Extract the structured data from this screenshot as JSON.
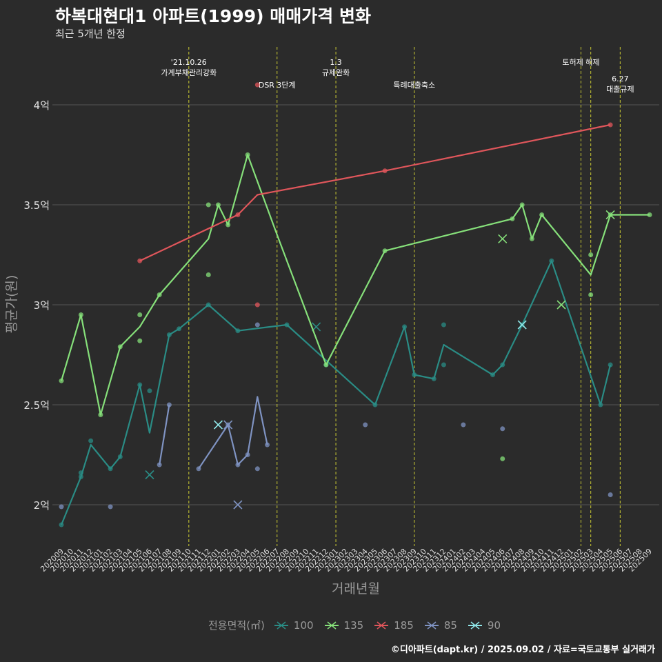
{
  "title": "하복대현대1 아파트(1999) 매매가격 변화",
  "subtitle": "최근 5개년 한정",
  "caption": "©디아파트(dapt.kr) / 2025.09.02 / 자료=국토교통부 실거래가",
  "colors": {
    "background": "#2b2b2b",
    "grid": "#555555",
    "event_line": "#cccc33",
    "s100": "#2a8c85",
    "s135": "#86e07a",
    "s185": "#e0565b",
    "s85": "#7f93c2",
    "s90": "#8fe6e8"
  },
  "chart_data": {
    "type": "line",
    "xlabel": "거래년월",
    "ylabel": "평균가(원)",
    "categories": [
      "202009",
      "202010",
      "202011",
      "202012",
      "202101",
      "202102",
      "202103",
      "202104",
      "202105",
      "202106",
      "202107",
      "202108",
      "202109",
      "202110",
      "202111",
      "202112",
      "202201",
      "202202",
      "202203",
      "202204",
      "202205",
      "202206",
      "202207",
      "202208",
      "202209",
      "202210",
      "202211",
      "202212",
      "202301",
      "202302",
      "202303",
      "202304",
      "202305",
      "202306",
      "202307",
      "202308",
      "202309",
      "202310",
      "202311",
      "202312",
      "202401",
      "202402",
      "202403",
      "202404",
      "202405",
      "202406",
      "202407",
      "202408",
      "202409",
      "202410",
      "202411",
      "202412",
      "202501",
      "202502",
      "202503",
      "202504",
      "202505",
      "202506",
      "202507",
      "202508",
      "202509"
    ],
    "y_ticks": [
      {
        "value": 2.0,
        "label": "2억"
      },
      {
        "value": 2.5,
        "label": "2.5억"
      },
      {
        "value": 3.0,
        "label": "3억"
      },
      {
        "value": 3.5,
        "label": "3.5억"
      },
      {
        "value": 4.0,
        "label": "4억"
      }
    ],
    "ylim": [
      1.8,
      4.25
    ],
    "legend_title": "전용면적(㎡)",
    "legend_position": "bottom",
    "events": [
      {
        "x": "202110",
        "lines": [
          "'21.10.26",
          "가계부채관리강화"
        ],
        "row": 1
      },
      {
        "x": "202207",
        "lines": [
          "DSR 3단계"
        ],
        "row": 2
      },
      {
        "x": "202301",
        "lines": [
          "1.3",
          "규제완화"
        ],
        "row": 1
      },
      {
        "x": "202309",
        "lines": [
          "특례대출축소"
        ],
        "row": 2
      },
      {
        "x": "202502",
        "lines": [
          "토허제 해제"
        ],
        "row": 1
      },
      {
        "x": "202503",
        "lines": [],
        "row": 0
      },
      {
        "x": "202506",
        "lines": [
          "6.27",
          "대출규제"
        ],
        "row": 3
      }
    ],
    "series": [
      {
        "name": "100",
        "color_key": "s100",
        "line": [
          [
            "202009",
            1.9
          ],
          [
            "202011",
            2.14
          ],
          [
            "202012",
            2.3
          ],
          [
            "202102",
            2.18
          ],
          [
            "202103",
            2.24
          ],
          [
            "202105",
            2.6
          ],
          [
            "202106",
            2.36
          ],
          [
            "202108",
            2.85
          ],
          [
            "202109",
            2.88
          ],
          [
            "202112",
            3.0
          ],
          [
            "202203",
            2.87
          ],
          [
            "202208",
            2.9
          ],
          [
            "202305",
            2.5
          ],
          [
            "202308",
            2.89
          ],
          [
            "202309",
            2.65
          ],
          [
            "202311",
            2.63
          ],
          [
            "202312",
            2.8
          ],
          [
            "202405",
            2.65
          ],
          [
            "202406",
            2.7
          ],
          [
            "202408",
            2.9
          ],
          [
            "202411",
            3.22
          ],
          [
            "202504",
            2.5
          ],
          [
            "202505",
            2.7
          ]
        ],
        "points": [
          [
            "202009",
            1.9
          ],
          [
            "202011",
            2.14
          ],
          [
            "202011",
            2.16
          ],
          [
            "202012",
            2.32
          ],
          [
            "202102",
            2.18
          ],
          [
            "202103",
            2.24
          ],
          [
            "202105",
            2.6
          ],
          [
            "202106",
            2.57
          ],
          [
            "202108",
            2.85
          ],
          [
            "202109",
            2.88
          ],
          [
            "202112",
            3.0
          ],
          [
            "202203",
            2.87
          ],
          [
            "202208",
            2.9
          ],
          [
            "202212",
            2.7
          ],
          [
            "202305",
            2.5
          ],
          [
            "202308",
            2.89
          ],
          [
            "202309",
            2.65
          ],
          [
            "202311",
            2.63
          ],
          [
            "202312",
            2.9
          ],
          [
            "202312",
            2.7
          ],
          [
            "202405",
            2.65
          ],
          [
            "202406",
            2.7
          ],
          [
            "202408",
            2.9
          ],
          [
            "202411",
            3.22
          ],
          [
            "202504",
            2.5
          ],
          [
            "202505",
            2.7
          ]
        ],
        "crosses": [
          [
            "202106",
            2.15
          ],
          [
            "202211",
            2.89
          ]
        ]
      },
      {
        "name": "135",
        "color_key": "s135",
        "line": [
          [
            "202009",
            2.62
          ],
          [
            "202011",
            2.95
          ],
          [
            "202101",
            2.45
          ],
          [
            "202103",
            2.79
          ],
          [
            "202105",
            2.89
          ],
          [
            "202107",
            3.05
          ],
          [
            "202112",
            3.33
          ],
          [
            "202201",
            3.5
          ],
          [
            "202202",
            3.4
          ],
          [
            "202204",
            3.75
          ],
          [
            "202207",
            3.35
          ],
          [
            "202212",
            2.7
          ],
          [
            "202306",
            3.27
          ],
          [
            "202407",
            3.43
          ],
          [
            "202408",
            3.5
          ],
          [
            "202409",
            3.33
          ],
          [
            "202410",
            3.45
          ],
          [
            "202503",
            3.15
          ],
          [
            "202505",
            3.45
          ],
          [
            "202509",
            3.45
          ]
        ],
        "points": [
          [
            "202009",
            2.62
          ],
          [
            "202011",
            2.95
          ],
          [
            "202101",
            2.45
          ],
          [
            "202103",
            2.79
          ],
          [
            "202105",
            2.95
          ],
          [
            "202105",
            2.82
          ],
          [
            "202107",
            3.05
          ],
          [
            "202112",
            3.5
          ],
          [
            "202112",
            3.15
          ],
          [
            "202201",
            3.5
          ],
          [
            "202202",
            3.4
          ],
          [
            "202204",
            3.75
          ],
          [
            "202212",
            2.7
          ],
          [
            "202306",
            3.27
          ],
          [
            "202407",
            3.43
          ],
          [
            "202408",
            3.5
          ],
          [
            "202409",
            3.33
          ],
          [
            "202410",
            3.45
          ],
          [
            "202503",
            3.25
          ],
          [
            "202503",
            3.05
          ],
          [
            "202505",
            3.45
          ],
          [
            "202509",
            3.45
          ],
          [
            "202406",
            2.23
          ]
        ],
        "crosses": [
          [
            "202406",
            3.33
          ],
          [
            "202412",
            3.0
          ],
          [
            "202505",
            3.45
          ]
        ]
      },
      {
        "name": "185",
        "color_key": "s185",
        "line": [
          [
            "202105",
            3.22
          ],
          [
            "202203",
            3.45
          ],
          [
            "202205",
            3.55
          ],
          [
            "202306",
            3.67
          ],
          [
            "202505",
            3.9
          ]
        ],
        "points": [
          [
            "202105",
            3.22
          ],
          [
            "202203",
            3.45
          ],
          [
            "202205",
            4.1
          ],
          [
            "202205",
            3.0
          ],
          [
            "202306",
            3.67
          ],
          [
            "202505",
            3.9
          ]
        ],
        "crosses": []
      },
      {
        "name": "85",
        "color_key": "s85",
        "line": [
          [
            "202107",
            2.2
          ],
          [
            "202108",
            2.5
          ]
        ],
        "line2": [
          [
            "202111",
            2.18
          ],
          [
            "202202",
            2.4
          ],
          [
            "202203",
            2.2
          ],
          [
            "202204",
            2.25
          ],
          [
            "202205",
            2.54
          ],
          [
            "202206",
            2.3
          ]
        ],
        "points": [
          [
            "202009",
            1.99
          ],
          [
            "202102",
            1.99
          ],
          [
            "202107",
            2.2
          ],
          [
            "202108",
            2.5
          ],
          [
            "202111",
            2.18
          ],
          [
            "202202",
            2.4
          ],
          [
            "202203",
            2.2
          ],
          [
            "202204",
            2.25
          ],
          [
            "202205",
            2.18
          ],
          [
            "202205",
            2.9
          ],
          [
            "202206",
            2.3
          ],
          [
            "202304",
            2.4
          ],
          [
            "202402",
            2.4
          ],
          [
            "202406",
            2.38
          ],
          [
            "202505",
            2.05
          ]
        ],
        "crosses": [
          [
            "202202",
            2.4
          ],
          [
            "202203",
            2.0
          ]
        ]
      },
      {
        "name": "90",
        "color_key": "s90",
        "line": [],
        "points": [],
        "crosses": [
          [
            "202201",
            2.4
          ],
          [
            "202408",
            2.9
          ]
        ]
      }
    ]
  }
}
